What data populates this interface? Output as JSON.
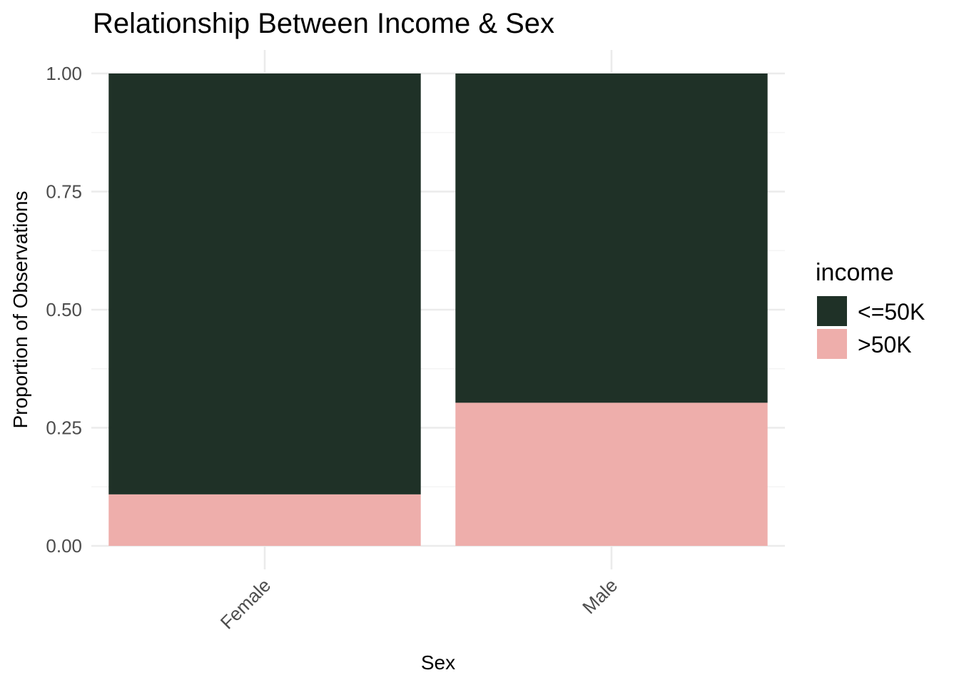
{
  "chart_data": {
    "type": "bar",
    "stacked": true,
    "title": "Relationship Between Income & Sex",
    "xlabel": "Sex",
    "ylabel": "Proportion of Observations",
    "categories": [
      "Female",
      "Male"
    ],
    "series": [
      {
        "name": "<=50K",
        "color": "#1f3127",
        "values": [
          0.891,
          0.697
        ]
      },
      {
        "name": ">50K",
        "color": "#eeaeab",
        "values": [
          0.109,
          0.303
        ]
      }
    ],
    "ylim": [
      0,
      1
    ],
    "yticks": [
      "0.00",
      "0.25",
      "0.50",
      "0.75",
      "1.00"
    ],
    "ytick_values": [
      0,
      0.25,
      0.5,
      0.75,
      1.0
    ],
    "legend": {
      "title": "income",
      "placement": "right"
    },
    "grid": true
  }
}
